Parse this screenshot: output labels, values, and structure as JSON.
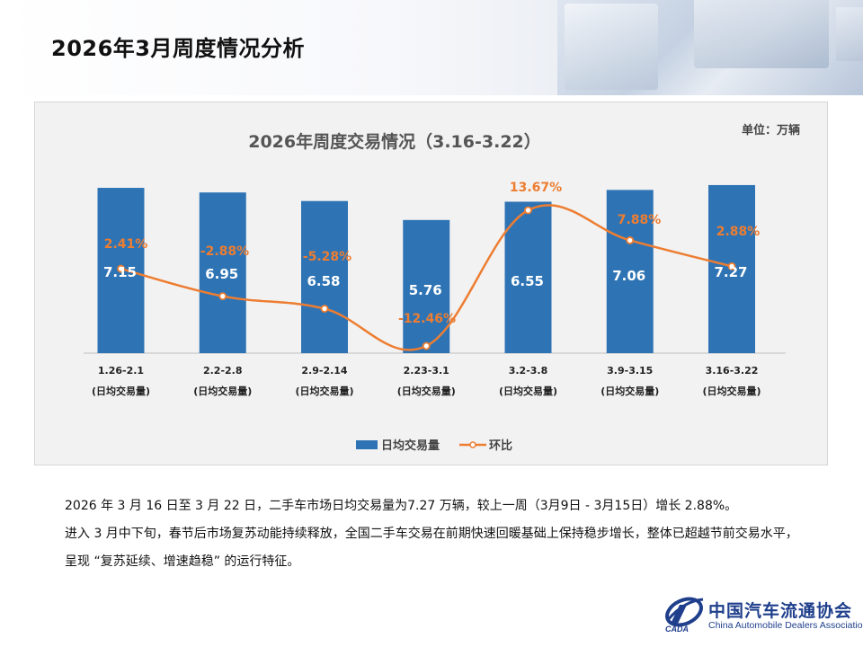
{
  "page": {
    "title": "2026年3月周度情况分析"
  },
  "chart_data": {
    "type": "bar",
    "title": "2026年周度交易情况（3.16-3.22）",
    "unit_label": "单位：万辆",
    "categories": [
      [
        "1.26-2.1",
        "(日均交易量)"
      ],
      [
        "2.2-2.8",
        "(日均交易量)"
      ],
      [
        "2.9-2.14",
        "(日均交易量)"
      ],
      [
        "2.23-3.1",
        "(日均交易量)"
      ],
      [
        "3.2-3.8",
        "(日均交易量)"
      ],
      [
        "3.9-3.15",
        "(日均交易量)"
      ],
      [
        "3.16-3.22",
        "(日均交易量)"
      ]
    ],
    "series": [
      {
        "name": "日均交易量",
        "type": "bar",
        "color": "#2e74b5",
        "values": [
          7.15,
          6.95,
          6.58,
          5.76,
          6.55,
          7.06,
          7.27
        ],
        "labels": [
          "7.15",
          "6.95",
          "6.58",
          "5.76",
          "6.55",
          "7.06",
          "7.27"
        ]
      },
      {
        "name": "环比",
        "type": "line",
        "color": "#ed7d31",
        "values": [
          2.41,
          -2.88,
          -5.28,
          -12.46,
          13.67,
          7.88,
          2.88
        ],
        "labels": [
          "2.41%",
          "-2.88%",
          "-5.28%",
          "-12.46%",
          "13.67%",
          "7.88%",
          "2.88%"
        ]
      }
    ],
    "legend_position": "bottom",
    "grid": false
  },
  "text": {
    "paragraph1": "2026 年 3 月 16 日至 3 月 22 日，二手车市场日均交易量为7.27 万辆，较上一周（3月9日 - 3月15日）增长 2.88%。",
    "paragraph2": "进入 3 月中下旬，春节后市场复苏动能持续释放，全国二手车交易在前期快速回暖基础上保持稳步增长，整体已超越节前交易水平，呈现 “复苏延续、增速趋稳” 的运行特征。"
  },
  "logo": {
    "name": "中国汽车流通协会",
    "english": "China Automobile Dealers Association",
    "abbr": "CADA"
  }
}
